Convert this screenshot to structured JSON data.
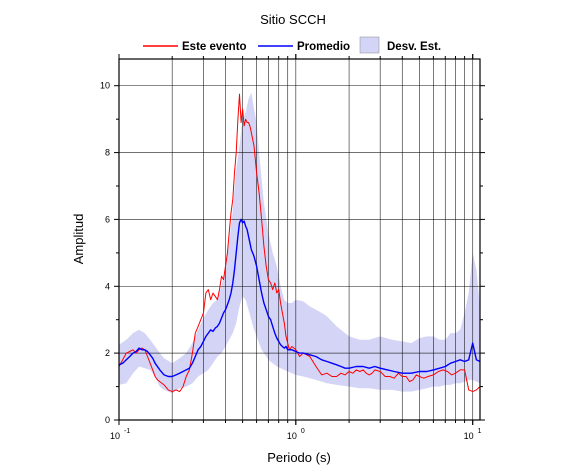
{
  "chart_data": {
    "type": "line",
    "title": "Sitio SCCH",
    "xlabel": "Periodo (s)",
    "ylabel": "Amplitud",
    "xscale": "log",
    "xlim": [
      0.1,
      11
    ],
    "ylim": [
      0,
      10.8
    ],
    "grid": true,
    "legend_position": "top",
    "x_tick_labels": [
      {
        "value": 0.1,
        "base": "10",
        "exp": "-1"
      },
      {
        "value": 1,
        "base": "10",
        "exp": "0"
      },
      {
        "value": 10,
        "base": "10",
        "exp": "1"
      }
    ],
    "y_ticks": [
      0,
      2,
      4,
      6,
      8,
      10
    ],
    "series": [
      {
        "name": "Este evento",
        "color": "#ff0000",
        "x": [
          0.1,
          0.105,
          0.11,
          0.115,
          0.12,
          0.125,
          0.13,
          0.135,
          0.14,
          0.145,
          0.15,
          0.155,
          0.16,
          0.165,
          0.17,
          0.18,
          0.19,
          0.2,
          0.21,
          0.22,
          0.23,
          0.24,
          0.25,
          0.26,
          0.27,
          0.28,
          0.29,
          0.3,
          0.31,
          0.32,
          0.33,
          0.34,
          0.35,
          0.36,
          0.37,
          0.38,
          0.39,
          0.4,
          0.41,
          0.42,
          0.43,
          0.44,
          0.45,
          0.46,
          0.47,
          0.48,
          0.49,
          0.5,
          0.51,
          0.52,
          0.53,
          0.54,
          0.55,
          0.56,
          0.58,
          0.6,
          0.62,
          0.64,
          0.66,
          0.68,
          0.7,
          0.72,
          0.74,
          0.76,
          0.78,
          0.8,
          0.82,
          0.84,
          0.86,
          0.88,
          0.9,
          0.92,
          0.95,
          1.0,
          1.05,
          1.1,
          1.15,
          1.2,
          1.3,
          1.4,
          1.5,
          1.6,
          1.7,
          1.8,
          1.9,
          2.0,
          2.1,
          2.2,
          2.3,
          2.4,
          2.5,
          2.6,
          2.7,
          2.8,
          3.0,
          3.2,
          3.4,
          3.6,
          3.8,
          4.0,
          4.2,
          4.4,
          4.6,
          4.8,
          5.0,
          5.3,
          5.6,
          6.0,
          6.4,
          6.8,
          7.2,
          7.6,
          8.0,
          8.5,
          9.0,
          9.5,
          10.0,
          10.5,
          11.0
        ],
        "y": [
          1.6,
          1.8,
          2.0,
          2.05,
          2.1,
          2.0,
          2.1,
          2.15,
          2.1,
          1.9,
          1.7,
          1.5,
          1.3,
          1.2,
          1.15,
          1.05,
          0.9,
          0.85,
          0.9,
          0.85,
          1.0,
          1.3,
          1.5,
          2.0,
          2.6,
          2.8,
          3.0,
          3.2,
          3.8,
          3.9,
          3.6,
          3.8,
          3.7,
          3.6,
          3.9,
          4.3,
          4.2,
          4.6,
          5.0,
          5.6,
          6.2,
          6.6,
          7.4,
          8.0,
          9.0,
          9.75,
          8.9,
          9.3,
          8.8,
          9.0,
          8.9,
          8.9,
          8.8,
          8.6,
          8.2,
          7.4,
          6.8,
          6.0,
          5.2,
          4.6,
          4.2,
          4.1,
          3.9,
          4.1,
          3.8,
          3.9,
          3.5,
          3.2,
          2.9,
          2.5,
          2.3,
          2.1,
          2.2,
          2.1,
          1.9,
          2.0,
          1.95,
          1.9,
          1.6,
          1.35,
          1.4,
          1.3,
          1.3,
          1.4,
          1.35,
          1.45,
          1.4,
          1.5,
          1.45,
          1.5,
          1.4,
          1.35,
          1.4,
          1.5,
          1.45,
          1.3,
          1.3,
          1.25,
          1.4,
          1.3,
          1.3,
          1.15,
          1.2,
          1.35,
          1.3,
          1.25,
          1.3,
          1.35,
          1.45,
          1.5,
          1.45,
          1.35,
          1.4,
          1.5,
          1.5,
          0.9,
          0.85,
          0.9,
          1.0
        ]
      },
      {
        "name": "Promedio",
        "color": "#0000ff",
        "x": [
          0.1,
          0.105,
          0.11,
          0.115,
          0.12,
          0.125,
          0.13,
          0.135,
          0.14,
          0.145,
          0.15,
          0.155,
          0.16,
          0.17,
          0.18,
          0.19,
          0.2,
          0.21,
          0.22,
          0.23,
          0.24,
          0.25,
          0.26,
          0.27,
          0.28,
          0.29,
          0.3,
          0.31,
          0.32,
          0.33,
          0.34,
          0.35,
          0.36,
          0.37,
          0.38,
          0.39,
          0.4,
          0.41,
          0.42,
          0.43,
          0.44,
          0.45,
          0.46,
          0.47,
          0.48,
          0.49,
          0.5,
          0.51,
          0.52,
          0.53,
          0.54,
          0.55,
          0.56,
          0.58,
          0.6,
          0.62,
          0.64,
          0.66,
          0.68,
          0.7,
          0.72,
          0.74,
          0.76,
          0.78,
          0.8,
          0.82,
          0.84,
          0.86,
          0.88,
          0.9,
          0.92,
          0.95,
          1.0,
          1.05,
          1.1,
          1.2,
          1.3,
          1.4,
          1.5,
          1.6,
          1.7,
          1.8,
          1.9,
          2.0,
          2.2,
          2.4,
          2.6,
          2.8,
          3.0,
          3.3,
          3.6,
          4.0,
          4.5,
          5.0,
          5.5,
          6.0,
          6.5,
          7.0,
          7.5,
          8.0,
          8.5,
          9.0,
          9.5,
          10.0,
          10.5,
          11.0
        ],
        "y": [
          1.65,
          1.7,
          1.8,
          1.9,
          2.0,
          2.05,
          2.15,
          2.1,
          2.1,
          2.05,
          1.95,
          1.85,
          1.7,
          1.5,
          1.35,
          1.3,
          1.3,
          1.35,
          1.4,
          1.45,
          1.5,
          1.55,
          1.7,
          1.9,
          2.1,
          2.2,
          2.35,
          2.5,
          2.6,
          2.7,
          2.65,
          2.75,
          2.8,
          2.9,
          3.05,
          3.2,
          3.3,
          3.45,
          3.6,
          3.8,
          4.1,
          4.5,
          5.0,
          5.5,
          5.9,
          6.0,
          5.9,
          5.95,
          5.8,
          5.7,
          5.5,
          5.3,
          5.1,
          4.9,
          4.6,
          4.2,
          3.8,
          3.5,
          3.3,
          3.1,
          3.0,
          2.8,
          2.6,
          2.45,
          2.35,
          2.25,
          2.2,
          2.15,
          2.2,
          2.1,
          2.1,
          2.1,
          2.05,
          2.0,
          2.0,
          1.95,
          1.9,
          1.8,
          1.75,
          1.7,
          1.65,
          1.6,
          1.55,
          1.55,
          1.6,
          1.6,
          1.55,
          1.6,
          1.55,
          1.5,
          1.45,
          1.4,
          1.4,
          1.45,
          1.45,
          1.5,
          1.55,
          1.6,
          1.7,
          1.75,
          1.8,
          1.75,
          1.8,
          2.3,
          1.8,
          1.75
        ]
      }
    ],
    "band": {
      "name": "Desv. Est.",
      "color": "#d4d4f7",
      "x": [
        0.1,
        0.11,
        0.12,
        0.13,
        0.14,
        0.15,
        0.16,
        0.17,
        0.18,
        0.2,
        0.22,
        0.24,
        0.26,
        0.28,
        0.3,
        0.32,
        0.34,
        0.36,
        0.38,
        0.4,
        0.42,
        0.44,
        0.46,
        0.48,
        0.5,
        0.52,
        0.54,
        0.56,
        0.58,
        0.6,
        0.62,
        0.64,
        0.66,
        0.7,
        0.74,
        0.78,
        0.82,
        0.86,
        0.9,
        0.95,
        1.0,
        1.1,
        1.2,
        1.3,
        1.4,
        1.5,
        1.7,
        2.0,
        2.3,
        2.6,
        3.0,
        3.5,
        4.0,
        4.5,
        5.0,
        5.5,
        6.0,
        6.5,
        7.0,
        7.5,
        8.0,
        8.5,
        9.0,
        9.5,
        10.0,
        10.5,
        11.0
      ],
      "upper": [
        2.25,
        2.4,
        2.6,
        2.7,
        2.6,
        2.4,
        2.2,
        2.0,
        1.85,
        1.7,
        1.85,
        2.0,
        2.3,
        2.7,
        3.05,
        3.3,
        3.5,
        3.6,
        4.0,
        4.6,
        5.3,
        6.3,
        7.5,
        8.2,
        9.0,
        9.2,
        9.6,
        9.8,
        9.3,
        8.9,
        8.0,
        7.2,
        6.5,
        5.6,
        5.0,
        4.6,
        4.0,
        3.6,
        3.5,
        3.5,
        3.6,
        3.55,
        3.4,
        3.3,
        3.2,
        3.1,
        2.8,
        2.5,
        2.4,
        2.4,
        2.5,
        2.4,
        2.35,
        2.3,
        2.45,
        2.5,
        2.5,
        2.4,
        2.4,
        2.6,
        2.6,
        2.7,
        3.2,
        3.8,
        5.0,
        4.5,
        3.4
      ],
      "lower": [
        1.05,
        1.1,
        1.4,
        1.6,
        1.55,
        1.5,
        1.3,
        1.0,
        0.9,
        0.8,
        0.95,
        1.0,
        1.1,
        1.3,
        1.4,
        1.5,
        1.7,
        1.9,
        2.0,
        2.2,
        2.4,
        2.6,
        2.9,
        3.4,
        3.7,
        3.6,
        3.3,
        3.0,
        2.7,
        2.5,
        2.3,
        2.1,
        2.0,
        1.8,
        1.7,
        1.6,
        1.55,
        1.5,
        1.45,
        1.4,
        1.35,
        1.3,
        1.25,
        1.2,
        1.15,
        1.1,
        1.05,
        1.0,
        0.95,
        0.95,
        0.9,
        0.9,
        0.85,
        0.85,
        0.9,
        0.95,
        1.0,
        1.0,
        1.05,
        1.05,
        1.1,
        1.1,
        1.15,
        1.2,
        1.2,
        1.15,
        1.1
      ]
    }
  }
}
